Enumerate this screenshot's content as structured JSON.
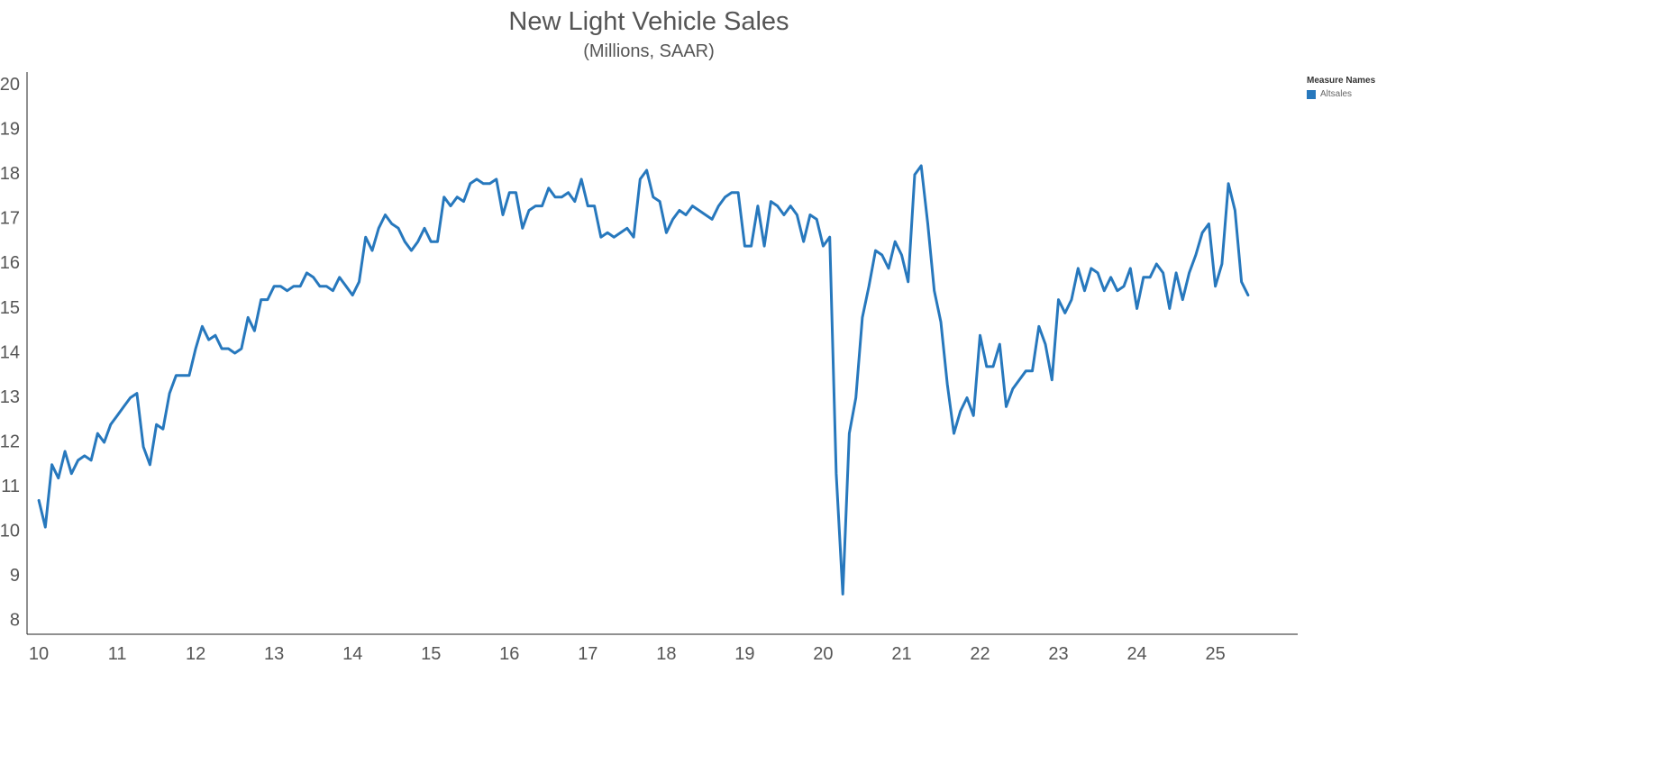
{
  "title": "New Light Vehicle Sales",
  "subtitle": "(Millions, SAAR)",
  "legend": {
    "title": "Measure Names",
    "items": [
      {
        "label": "Altsales",
        "color": "#2778bd"
      }
    ]
  },
  "chart_data": {
    "type": "line",
    "title": "New Light Vehicle Sales",
    "subtitle": "(Millions, SAAR)",
    "xlabel": "",
    "ylabel": "",
    "x_ticks": [
      "10",
      "11",
      "12",
      "13",
      "14",
      "15",
      "16",
      "17",
      "18",
      "19",
      "20",
      "21",
      "22",
      "23",
      "24",
      "25"
    ],
    "y_ticks": [
      "8",
      "9",
      "10",
      "11",
      "12",
      "13",
      "14",
      "15",
      "16",
      "17",
      "18",
      "19",
      "20"
    ],
    "xlim": [
      2009.85,
      2026.05
    ],
    "ylim": [
      7.7,
      20.3
    ],
    "grid": false,
    "legend_position": "top-right",
    "series": [
      {
        "name": "Altsales",
        "color": "#2778bd",
        "values": [
          10.7,
          10.1,
          11.5,
          11.2,
          11.8,
          11.3,
          11.6,
          11.7,
          11.6,
          12.2,
          12.0,
          12.4,
          12.6,
          12.8,
          13.0,
          13.1,
          11.9,
          11.5,
          12.4,
          12.3,
          13.1,
          13.5,
          13.5,
          13.5,
          14.1,
          14.6,
          14.3,
          14.4,
          14.1,
          14.1,
          14.0,
          14.1,
          14.8,
          14.5,
          15.2,
          15.2,
          15.5,
          15.5,
          15.4,
          15.5,
          15.5,
          15.8,
          15.7,
          15.5,
          15.5,
          15.4,
          15.7,
          15.5,
          15.3,
          15.6,
          16.6,
          16.3,
          16.8,
          17.1,
          16.9,
          16.8,
          16.5,
          16.3,
          16.5,
          16.8,
          16.5,
          16.5,
          17.5,
          17.3,
          17.5,
          17.4,
          17.8,
          17.9,
          17.8,
          17.8,
          17.9,
          17.1,
          17.6,
          17.6,
          16.8,
          17.2,
          17.3,
          17.3,
          17.7,
          17.5,
          17.5,
          17.6,
          17.4,
          17.9,
          17.3,
          17.3,
          16.6,
          16.7,
          16.6,
          16.7,
          16.8,
          16.6,
          17.9,
          18.1,
          17.5,
          17.4,
          16.7,
          17.0,
          17.2,
          17.1,
          17.3,
          17.2,
          17.1,
          17.0,
          17.3,
          17.5,
          17.6,
          17.6,
          16.4,
          16.4,
          17.3,
          16.4,
          17.4,
          17.3,
          17.1,
          17.3,
          17.1,
          16.5,
          17.1,
          17.0,
          16.4,
          16.6,
          11.3,
          8.6,
          12.2,
          13.0,
          14.8,
          15.5,
          16.3,
          16.2,
          15.9,
          16.5,
          16.2,
          15.6,
          18.0,
          18.2,
          16.9,
          15.4,
          14.7,
          13.3,
          12.2,
          12.7,
          13.0,
          12.6,
          14.4,
          13.7,
          13.7,
          14.2,
          12.8,
          13.2,
          13.4,
          13.6,
          13.6,
          14.6,
          14.2,
          13.4,
          15.2,
          14.9,
          15.2,
          15.9,
          15.4,
          15.9,
          15.8,
          15.4,
          15.7,
          15.4,
          15.5,
          15.9,
          15.0,
          15.7,
          15.7,
          16.0,
          15.8,
          15.0,
          15.8,
          15.2,
          15.8,
          16.2,
          16.7,
          16.9,
          15.5,
          16.0,
          17.8,
          17.2,
          15.6,
          15.3
        ]
      }
    ]
  }
}
